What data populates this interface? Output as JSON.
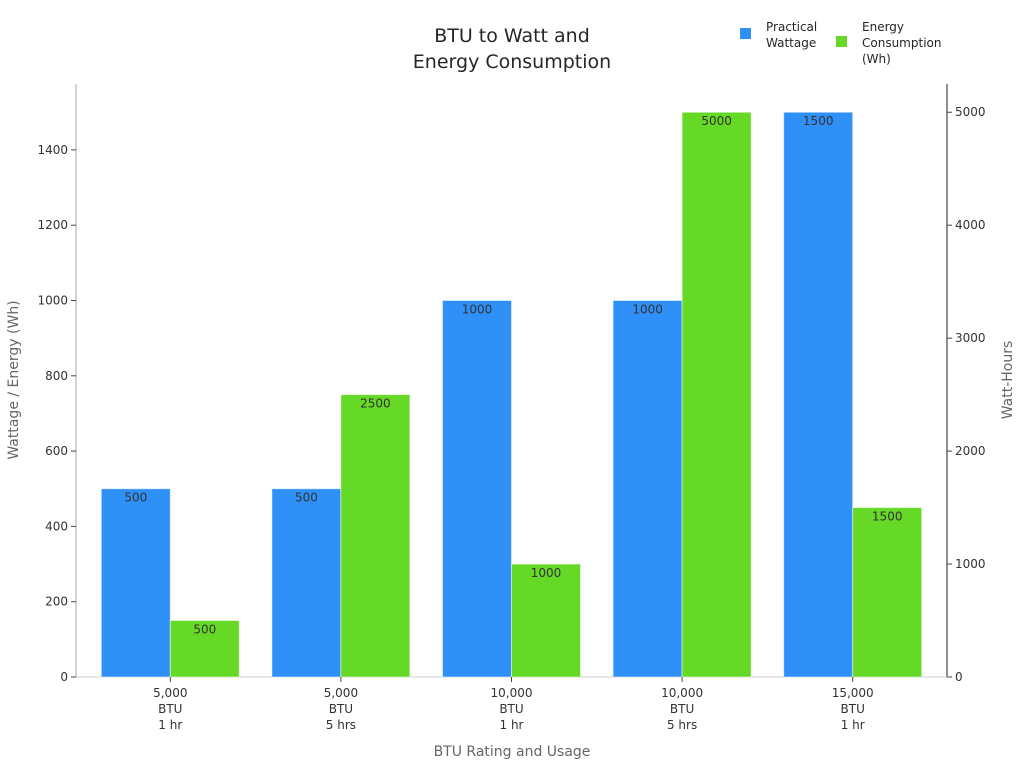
{
  "chart_data": {
    "type": "bar",
    "title": [
      "BTU to Watt and",
      "Energy Consumption"
    ],
    "xlabel": "BTU Rating and Usage",
    "ylabel": "Wattage / Energy (Wh)",
    "y2label": "Watt-Hours",
    "categories": [
      [
        "5,000",
        "BTU",
        "1 hr"
      ],
      [
        "5,000",
        "BTU",
        "5 hrs"
      ],
      [
        "10,000",
        "BTU",
        "1 hr"
      ],
      [
        "10,000",
        "BTU",
        "5 hrs"
      ],
      [
        "15,000",
        "BTU",
        "1 hr"
      ]
    ],
    "series": [
      {
        "name": [
          "Practical",
          "Wattage"
        ],
        "axis": "left",
        "color": "#2f91f7",
        "values": [
          500,
          500,
          1000,
          1000,
          1500
        ]
      },
      {
        "name": [
          "Energy",
          "Consumption",
          "(Wh)"
        ],
        "axis": "right",
        "color": "#66d926",
        "values": [
          500,
          2500,
          1000,
          5000,
          1500
        ]
      }
    ],
    "ylim": [
      0,
      1575
    ],
    "y2lim": [
      0,
      5250
    ],
    "yticks": [
      0,
      200,
      400,
      600,
      800,
      1000,
      1200,
      1400
    ],
    "y2ticks": [
      0,
      1000,
      2000,
      3000,
      4000,
      5000
    ],
    "legend_position": "top-right",
    "grid": false
  }
}
